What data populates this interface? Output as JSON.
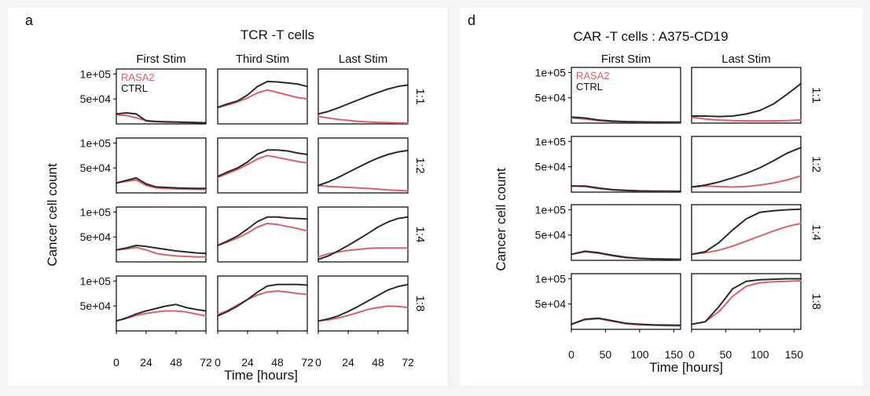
{
  "panel_a": {
    "letter": "a",
    "title": "TCR -T cells",
    "columns": [
      "First Stim",
      "Third Stim",
      "Last Stim"
    ],
    "rows": [
      "1:1",
      "1:2",
      "1:4",
      "1:8"
    ],
    "ylabel": "Cancer cell count",
    "xlabel": "Time [hours]",
    "y_ticks": [
      "1e+05",
      "5e+04"
    ],
    "x_ticks": [
      "0",
      "24",
      "48",
      "72"
    ],
    "legend": [
      "RASA2",
      "CTRL"
    ]
  },
  "panel_d": {
    "letter": "d",
    "title": "CAR -T cells : A375-CD19",
    "columns": [
      "First Stim",
      "Last Stim"
    ],
    "rows": [
      "1:1",
      "1:2",
      "1:4",
      "1:8"
    ],
    "ylabel": "Cancer cell count",
    "xlabel": "Time [hours]",
    "y_ticks": [
      "1e+05",
      "5e+04"
    ],
    "x_ticks": [
      "0",
      "50",
      "100",
      "150"
    ],
    "legend": [
      "RASA2",
      "CTRL"
    ]
  },
  "colors": {
    "RASA2": "#d9606e",
    "CTRL": "#2b2b2b",
    "axis": "#000000",
    "background": "#f4f4f4"
  },
  "chart_data": [
    {
      "type": "line",
      "panel": "a",
      "title": "TCR -T cells",
      "xlabel": "Time [hours]",
      "ylabel": "Cancer cell count",
      "xlim": [
        0,
        72
      ],
      "ylim": [
        0,
        110000
      ],
      "x": [
        0,
        8,
        16,
        24,
        32,
        40,
        48,
        56,
        64,
        72
      ],
      "facets": [
        {
          "col": "First Stim",
          "row": "1:1",
          "series": [
            {
              "name": "CTRL",
              "values": [
                20000,
                22000,
                20000,
                6000,
                4500,
                4000,
                3500,
                3000,
                2500,
                2000
              ]
            },
            {
              "name": "RASA2",
              "values": [
                18000,
                17000,
                12000,
                7000,
                5000,
                4500,
                4000,
                3500,
                3000,
                2500
              ]
            }
          ]
        },
        {
          "col": "Third Stim",
          "row": "1:1",
          "series": [
            {
              "name": "CTRL",
              "values": [
                33000,
                40000,
                46000,
                58000,
                75000,
                85000,
                84000,
                82000,
                80000,
                75000
              ]
            },
            {
              "name": "RASA2",
              "values": [
                33000,
                38000,
                44000,
                52000,
                62000,
                68000,
                63000,
                58000,
                53000,
                50000
              ]
            }
          ]
        },
        {
          "col": "Last Stim",
          "row": "1:1",
          "series": [
            {
              "name": "CTRL",
              "values": [
                20000,
                25000,
                32000,
                40000,
                48000,
                56000,
                63000,
                70000,
                75000,
                78000
              ]
            },
            {
              "name": "RASA2",
              "values": [
                15000,
                12000,
                9000,
                7000,
                5000,
                4000,
                3000,
                2500,
                2000,
                1500
              ]
            }
          ]
        },
        {
          "col": "First Stim",
          "row": "1:2",
          "series": [
            {
              "name": "CTRL",
              "values": [
                20000,
                25000,
                30000,
                18000,
                12000,
                11000,
                10000,
                9500,
                9000,
                9000
              ]
            },
            {
              "name": "RASA2",
              "values": [
                20000,
                23000,
                26000,
                15000,
                10000,
                9000,
                8000,
                7500,
                7000,
                7000
              ]
            }
          ]
        },
        {
          "col": "Third Stim",
          "row": "1:2",
          "series": [
            {
              "name": "CTRL",
              "values": [
                33000,
                42000,
                50000,
                62000,
                78000,
                86000,
                86000,
                84000,
                80000,
                77000
              ]
            },
            {
              "name": "RASA2",
              "values": [
                31000,
                39000,
                47000,
                57000,
                68000,
                75000,
                71000,
                67000,
                63000,
                60000
              ]
            }
          ]
        },
        {
          "col": "Last Stim",
          "row": "1:2",
          "series": [
            {
              "name": "CTRL",
              "values": [
                15000,
                22000,
                31000,
                41000,
                51000,
                61000,
                70000,
                77000,
                82000,
                85000
              ]
            },
            {
              "name": "RASA2",
              "values": [
                15000,
                13000,
                12000,
                11000,
                10000,
                9000,
                7500,
                6000,
                5000,
                4000
              ]
            }
          ]
        },
        {
          "col": "First Stim",
          "row": "1:4",
          "series": [
            {
              "name": "CTRL",
              "values": [
                24000,
                28000,
                33000,
                31000,
                28000,
                25000,
                22000,
                20000,
                18000,
                17000
              ]
            },
            {
              "name": "RASA2",
              "values": [
                24000,
                26000,
                29000,
                24000,
                17000,
                14000,
                12000,
                11000,
                10000,
                10000
              ]
            }
          ]
        },
        {
          "col": "Third Stim",
          "row": "1:4",
          "series": [
            {
              "name": "CTRL",
              "values": [
                33000,
                42000,
                52000,
                66000,
                81000,
                90000,
                90000,
                88000,
                87000,
                86000
              ]
            },
            {
              "name": "RASA2",
              "values": [
                33000,
                40000,
                48000,
                58000,
                70000,
                77000,
                75000,
                71000,
                67000,
                62000
              ]
            }
          ]
        },
        {
          "col": "Last Stim",
          "row": "1:4",
          "series": [
            {
              "name": "CTRL",
              "values": [
                5000,
                12000,
                22000,
                33000,
                45000,
                57000,
                70000,
                80000,
                87000,
                90000
              ]
            },
            {
              "name": "RASA2",
              "values": [
                10000,
                16000,
                20000,
                23000,
                25000,
                27000,
                28000,
                28000,
                28000,
                28000
              ]
            }
          ]
        },
        {
          "col": "First Stim",
          "row": "1:8",
          "series": [
            {
              "name": "CTRL",
              "values": [
                20000,
                26000,
                34000,
                40000,
                45000,
                50000,
                53000,
                47000,
                43000,
                40000
              ]
            },
            {
              "name": "RASA2",
              "values": [
                20000,
                25000,
                31000,
                35000,
                38000,
                40000,
                40000,
                38000,
                34000,
                30000
              ]
            }
          ]
        },
        {
          "col": "Third Stim",
          "row": "1:8",
          "series": [
            {
              "name": "CTRL",
              "values": [
                30000,
                39000,
                50000,
                63000,
                78000,
                90000,
                93000,
                93000,
                93000,
                92000
              ]
            },
            {
              "name": "RASA2",
              "values": [
                33000,
                41000,
                52000,
                63000,
                72000,
                78000,
                80000,
                78000,
                75000,
                73000
              ]
            }
          ]
        },
        {
          "col": "Last Stim",
          "row": "1:8",
          "series": [
            {
              "name": "CTRL",
              "values": [
                20000,
                24000,
                30000,
                39000,
                49000,
                60000,
                71000,
                82000,
                89000,
                93000
              ]
            },
            {
              "name": "RASA2",
              "values": [
                20000,
                22000,
                26000,
                31000,
                37000,
                43000,
                47000,
                50000,
                49000,
                47000
              ]
            }
          ]
        }
      ]
    },
    {
      "type": "line",
      "panel": "d",
      "title": "CAR -T cells : A375-CD19",
      "xlabel": "Time [hours]",
      "ylabel": "Cancer cell count",
      "xlim": [
        0,
        160
      ],
      "ylim": [
        0,
        110000
      ],
      "x": [
        0,
        20,
        40,
        60,
        80,
        100,
        120,
        140,
        160
      ],
      "facets": [
        {
          "col": "First Stim",
          "row": "1:1",
          "series": [
            {
              "name": "CTRL",
              "values": [
                12000,
                10000,
                6000,
                4000,
                3000,
                2500,
                2000,
                2000,
                2000
              ]
            },
            {
              "name": "RASA2",
              "values": [
                10000,
                8000,
                5000,
                3000,
                2500,
                2000,
                1800,
                1700,
                1600
              ]
            }
          ]
        },
        {
          "col": "Last Stim",
          "row": "1:1",
          "series": [
            {
              "name": "CTRL",
              "values": [
                14000,
                14000,
                13000,
                14000,
                18000,
                25000,
                38000,
                57000,
                78000
              ]
            },
            {
              "name": "RASA2",
              "values": [
                12000,
                8000,
                6000,
                5000,
                4500,
                4500,
                4500,
                5000,
                6000
              ]
            }
          ]
        },
        {
          "col": "First Stim",
          "row": "1:2",
          "series": [
            {
              "name": "CTRL",
              "values": [
                12000,
                12000,
                8000,
                5000,
                3500,
                2500,
                2000,
                1800,
                1600
              ]
            },
            {
              "name": "RASA2",
              "values": [
                12000,
                11000,
                7000,
                4000,
                3000,
                2000,
                1700,
                1500,
                1500
              ]
            }
          ]
        },
        {
          "col": "Last Stim",
          "row": "1:2",
          "series": [
            {
              "name": "CTRL",
              "values": [
                10000,
                14000,
                20000,
                28000,
                37000,
                48000,
                62000,
                77000,
                88000
              ]
            },
            {
              "name": "RASA2",
              "values": [
                10000,
                12000,
                11000,
                10000,
                11000,
                14000,
                18000,
                24000,
                32000
              ]
            }
          ]
        },
        {
          "col": "First Stim",
          "row": "1:4",
          "series": [
            {
              "name": "CTRL",
              "values": [
                12000,
                18000,
                15000,
                10000,
                6000,
                4000,
                3000,
                2500,
                2000
              ]
            },
            {
              "name": "RASA2",
              "values": [
                12000,
                17000,
                14000,
                9000,
                5000,
                3500,
                2800,
                2400,
                2000
              ]
            }
          ]
        },
        {
          "col": "Last Stim",
          "row": "1:4",
          "series": [
            {
              "name": "CTRL",
              "values": [
                12000,
                17000,
                35000,
                60000,
                82000,
                95000,
                98000,
                100000,
                101000
              ]
            },
            {
              "name": "RASA2",
              "values": [
                12000,
                15000,
                20000,
                28000,
                38000,
                48000,
                58000,
                67000,
                73000
              ]
            }
          ]
        },
        {
          "col": "First Stim",
          "row": "1:8",
          "series": [
            {
              "name": "CTRL",
              "values": [
                10000,
                20000,
                22000,
                17000,
                12000,
                10000,
                9000,
                8500,
                8000
              ]
            },
            {
              "name": "RASA2",
              "values": [
                10000,
                19000,
                21000,
                16000,
                11000,
                9000,
                8000,
                7500,
                7000
              ]
            }
          ]
        },
        {
          "col": "Last Stim",
          "row": "1:8",
          "series": [
            {
              "name": "CTRL",
              "values": [
                10000,
                15000,
                45000,
                80000,
                95000,
                98000,
                99000,
                100000,
                100000
              ]
            },
            {
              "name": "RASA2",
              "values": [
                10000,
                15000,
                35000,
                65000,
                85000,
                92000,
                94000,
                95000,
                96000
              ]
            }
          ]
        }
      ]
    }
  ]
}
